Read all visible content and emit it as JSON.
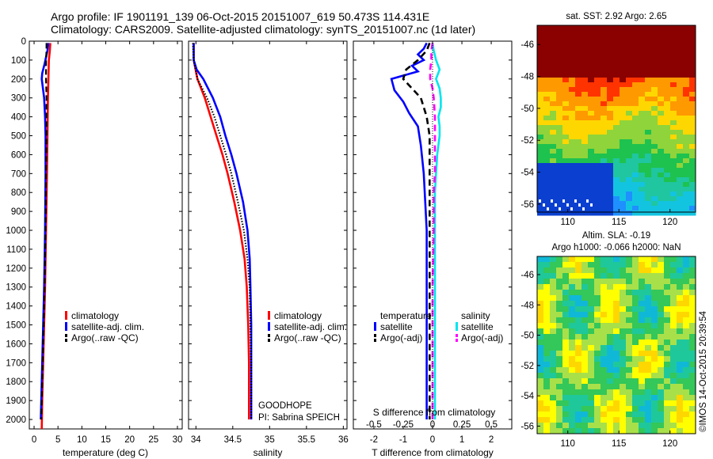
{
  "header": {
    "line1": "Argo profile: IF 1901191_139 06-Oct-2015 20151007_619 50.473S 114.431E",
    "line2": "Climatology: CARS2009. Satellite-adjusted climatology: synTS_20151007.nc (1d later)"
  },
  "panels_text": {
    "goodhope": "GOODHOPE",
    "pi": "PI: Sabrina SPEICH",
    "watermark": "©IMOS 14-Oct-2015 20:39:54"
  },
  "colors": {
    "climatology": "#ff0000",
    "satellite": "#0000ff",
    "argo": "#000000",
    "sal_satellite": "#00e5ee",
    "sal_argo": "#ff00ff"
  },
  "chart_data": [
    {
      "type": "line",
      "xlabel": "temperature (deg C)",
      "ylabel": "",
      "xlim": [
        -1,
        31
      ],
      "ylim": [
        2050,
        0
      ],
      "xticks": [
        0,
        5,
        10,
        15,
        20,
        25,
        30
      ],
      "yticks": [
        0,
        100,
        200,
        300,
        400,
        500,
        600,
        700,
        800,
        900,
        1000,
        1100,
        1200,
        1300,
        1400,
        1500,
        1600,
        1700,
        1800,
        1900,
        2000
      ],
      "legend": {
        "placement": "center",
        "entries": [
          "climatology",
          "satellite-adj. clim.",
          "Argo(..raw -QC)"
        ]
      },
      "series": [
        {
          "name": "climatology",
          "style": "solid",
          "points": [
            [
              3.4,
              10
            ],
            [
              3.3,
              50
            ],
            [
              3.1,
              100
            ],
            [
              3.0,
              200
            ],
            [
              2.9,
              300
            ],
            [
              2.8,
              500
            ],
            [
              2.7,
              700
            ],
            [
              2.5,
              1000
            ],
            [
              2.3,
              1300
            ],
            [
              2.1,
              1500
            ],
            [
              1.9,
              1700
            ],
            [
              1.7,
              1900
            ],
            [
              1.6,
              2050
            ]
          ]
        },
        {
          "name": "satellite-adj. clim.",
          "style": "solid",
          "points": [
            [
              3.0,
              10
            ],
            [
              2.8,
              50
            ],
            [
              2.2,
              120
            ],
            [
              1.7,
              170
            ],
            [
              1.6,
              200
            ],
            [
              1.9,
              260
            ],
            [
              2.1,
              300
            ],
            [
              2.3,
              400
            ],
            [
              2.4,
              500
            ],
            [
              2.4,
              700
            ],
            [
              2.3,
              1000
            ],
            [
              2.1,
              1300
            ],
            [
              1.9,
              1500
            ],
            [
              1.7,
              1700
            ],
            [
              1.5,
              1900
            ],
            [
              1.4,
              2000
            ]
          ]
        },
        {
          "name": "Argo(..raw -QC)",
          "style": "dashed",
          "points": [
            [
              2.6,
              10
            ],
            [
              2.6,
              50
            ],
            [
              2.5,
              100
            ],
            [
              2.5,
              200
            ],
            [
              2.6,
              300
            ],
            [
              2.6,
              500
            ],
            [
              2.5,
              700
            ],
            [
              2.4,
              1000
            ],
            [
              2.2,
              1300
            ],
            [
              2.0,
              1500
            ],
            [
              1.8,
              1700
            ],
            [
              1.6,
              1900
            ],
            [
              1.5,
              2000
            ]
          ]
        }
      ]
    },
    {
      "type": "line",
      "xlabel": "salinity",
      "ylabel": "",
      "xlim": [
        33.9,
        36.05
      ],
      "ylim": [
        2050,
        0
      ],
      "xticks": [
        34,
        34.5,
        35,
        35.5,
        36
      ],
      "xtick_labels": [
        "34",
        "34.5",
        "35",
        "35.5",
        "36"
      ],
      "legend": {
        "placement": "center",
        "entries": [
          "climatology",
          "satellite-adj. clim.",
          "Argo(..raw -QC)"
        ]
      },
      "series": [
        {
          "name": "climatology",
          "style": "solid",
          "points": [
            [
              33.97,
              10
            ],
            [
              33.97,
              100
            ],
            [
              34.02,
              200
            ],
            [
              34.12,
              300
            ],
            [
              34.2,
              400
            ],
            [
              34.28,
              500
            ],
            [
              34.36,
              600
            ],
            [
              34.43,
              700
            ],
            [
              34.52,
              850
            ],
            [
              34.6,
              1000
            ],
            [
              34.66,
              1150
            ],
            [
              34.69,
              1300
            ],
            [
              34.71,
              1500
            ],
            [
              34.72,
              1700
            ],
            [
              34.72,
              1900
            ],
            [
              34.72,
              2000
            ]
          ]
        },
        {
          "name": "satellite-adj. clim.",
          "style": "solid",
          "points": [
            [
              33.97,
              10
            ],
            [
              33.97,
              100
            ],
            [
              34.01,
              150
            ],
            [
              34.1,
              200
            ],
            [
              34.23,
              300
            ],
            [
              34.33,
              400
            ],
            [
              34.4,
              500
            ],
            [
              34.48,
              600
            ],
            [
              34.55,
              700
            ],
            [
              34.64,
              850
            ],
            [
              34.7,
              1000
            ],
            [
              34.73,
              1150
            ],
            [
              34.74,
              1300
            ],
            [
              34.75,
              1500
            ],
            [
              34.75,
              1700
            ],
            [
              34.75,
              1900
            ],
            [
              34.75,
              2000
            ]
          ]
        },
        {
          "name": "Argo(..raw -QC)",
          "style": "dotted",
          "points": [
            [
              33.96,
              10
            ],
            [
              33.97,
              100
            ],
            [
              34.02,
              200
            ],
            [
              34.15,
              300
            ],
            [
              34.25,
              400
            ],
            [
              34.33,
              500
            ],
            [
              34.41,
              600
            ],
            [
              34.48,
              700
            ],
            [
              34.57,
              850
            ],
            [
              34.65,
              1000
            ],
            [
              34.7,
              1150
            ],
            [
              34.73,
              1300
            ],
            [
              34.74,
              1500
            ],
            [
              34.75,
              1700
            ],
            [
              34.75,
              1900
            ],
            [
              34.75,
              2000
            ]
          ]
        }
      ]
    },
    {
      "type": "line",
      "xlabel": "T difference from climatology",
      "xlabel_top": "S difference from climatology",
      "xlim": [
        -2.7,
        2.7
      ],
      "ylim": [
        2050,
        0
      ],
      "xticks": [
        -2,
        -1,
        0,
        1,
        2
      ],
      "xticks_top_values": [
        -0.5,
        -0.25,
        0,
        0.25,
        0.5
      ],
      "xticks_top_labels": [
        "-0.5",
        "-0.25",
        "0",
        "0.25",
        "0.5"
      ],
      "legend": {
        "placement": "center",
        "temperature_title": "temperature",
        "salinity_title": "salinity",
        "entries": [
          "satellite",
          "Argo(-adj)",
          "satellite",
          "Argo(-adj)"
        ]
      },
      "series": [
        {
          "name": "satellite",
          "group": "temperature",
          "style": "solid",
          "points": [
            [
              -0.2,
              10
            ],
            [
              -0.3,
              40
            ],
            [
              -0.5,
              70
            ],
            [
              -0.3,
              100
            ],
            [
              -0.7,
              130
            ],
            [
              -0.5,
              160
            ],
            [
              -1.4,
              200
            ],
            [
              -1.3,
              260
            ],
            [
              -1.0,
              320
            ],
            [
              -0.8,
              380
            ],
            [
              -0.5,
              450
            ],
            [
              -0.4,
              550
            ],
            [
              -0.3,
              700
            ],
            [
              -0.2,
              1000
            ],
            [
              -0.2,
              1300
            ],
            [
              -0.2,
              1600
            ],
            [
              -0.2,
              1900
            ],
            [
              -0.2,
              2000
            ]
          ]
        },
        {
          "name": "Argo(-adj)",
          "group": "temperature",
          "style": "dashed",
          "points": [
            [
              -0.1,
              10
            ],
            [
              -0.2,
              50
            ],
            [
              -0.5,
              100
            ],
            [
              -0.9,
              150
            ],
            [
              -1.0,
              200
            ],
            [
              -0.7,
              250
            ],
            [
              -0.4,
              300
            ],
            [
              -0.2,
              400
            ],
            [
              -0.1,
              500
            ],
            [
              -0.1,
              700
            ],
            [
              -0.1,
              1000
            ],
            [
              -0.1,
              1300
            ],
            [
              -0.1,
              1600
            ],
            [
              -0.1,
              1900
            ],
            [
              -0.1,
              2000
            ]
          ]
        },
        {
          "name": "satellite",
          "group": "salinity",
          "style": "solid",
          "points": [
            [
              0,
              10
            ],
            [
              0.01,
              50
            ],
            [
              0.03,
              100
            ],
            [
              0.06,
              150
            ],
            [
              0.03,
              200
            ],
            [
              0.06,
              250
            ],
            [
              0.07,
              300
            ],
            [
              0.07,
              350
            ],
            [
              0.05,
              400
            ],
            [
              0.06,
              450
            ],
            [
              0.06,
              500
            ],
            [
              0.04,
              600
            ],
            [
              0.03,
              700
            ],
            [
              0.02,
              800
            ],
            [
              0.02,
              1000
            ],
            [
              0.02,
              1300
            ],
            [
              0.02,
              1600
            ],
            [
              0.02,
              1900
            ],
            [
              0.02,
              2000
            ]
          ]
        },
        {
          "name": "Argo(-adj)",
          "group": "salinity",
          "style": "dashed",
          "points": [
            [
              0,
              10
            ],
            [
              -0.01,
              50
            ],
            [
              -0.01,
              100
            ],
            [
              -0.02,
              150
            ],
            [
              -0.02,
              200
            ],
            [
              0,
              250
            ],
            [
              0.01,
              300
            ],
            [
              0.02,
              400
            ],
            [
              0.02,
              500
            ],
            [
              0.02,
              600
            ],
            [
              0.02,
              700
            ],
            [
              0.01,
              800
            ],
            [
              0.01,
              1000
            ],
            [
              0,
              1300
            ],
            [
              0,
              1600
            ],
            [
              0,
              1900
            ],
            [
              0,
              2000
            ]
          ]
        }
      ]
    },
    {
      "type": "heatmap",
      "title": "sat. SST: 2.92 Argo: 2.65",
      "xlim": [
        107,
        122.5
      ],
      "ylim": [
        -56.5,
        -44.8
      ],
      "xticks": [
        110,
        115,
        120
      ],
      "yticks": [
        -46,
        -48,
        -50,
        -52,
        -54,
        -56
      ],
      "ytick_labels": [
        "-46",
        "-48",
        "-50",
        "-52",
        "-54",
        "-56"
      ],
      "colors": [
        "#8b0000",
        "#ff3300",
        "#ff9900",
        "#ffd700",
        "#8fd43a",
        "#1ec24f",
        "#1fc6a0",
        "#13c4e0",
        "#1e90ff",
        "#0a3fd0"
      ]
    },
    {
      "type": "heatmap",
      "title": "Altim. SLA: -0.19",
      "subtitle": "Argo h1000: -0.066 h2000: NaN",
      "xlim": [
        107,
        122.5
      ],
      "ylim": [
        -56.5,
        -44.8
      ],
      "xticks": [
        110,
        115,
        120
      ],
      "yticks": [
        -46,
        -48,
        -50,
        -52,
        -54,
        -56
      ],
      "ytick_labels": [
        "-46",
        "-48",
        "-50",
        "-52",
        "-54",
        "-56"
      ],
      "colors": [
        "#ff8c00",
        "#ffd700",
        "#ffff00",
        "#a8e04a",
        "#34c759",
        "#1fc89a",
        "#10b8d8",
        "#1e70ff"
      ]
    }
  ]
}
